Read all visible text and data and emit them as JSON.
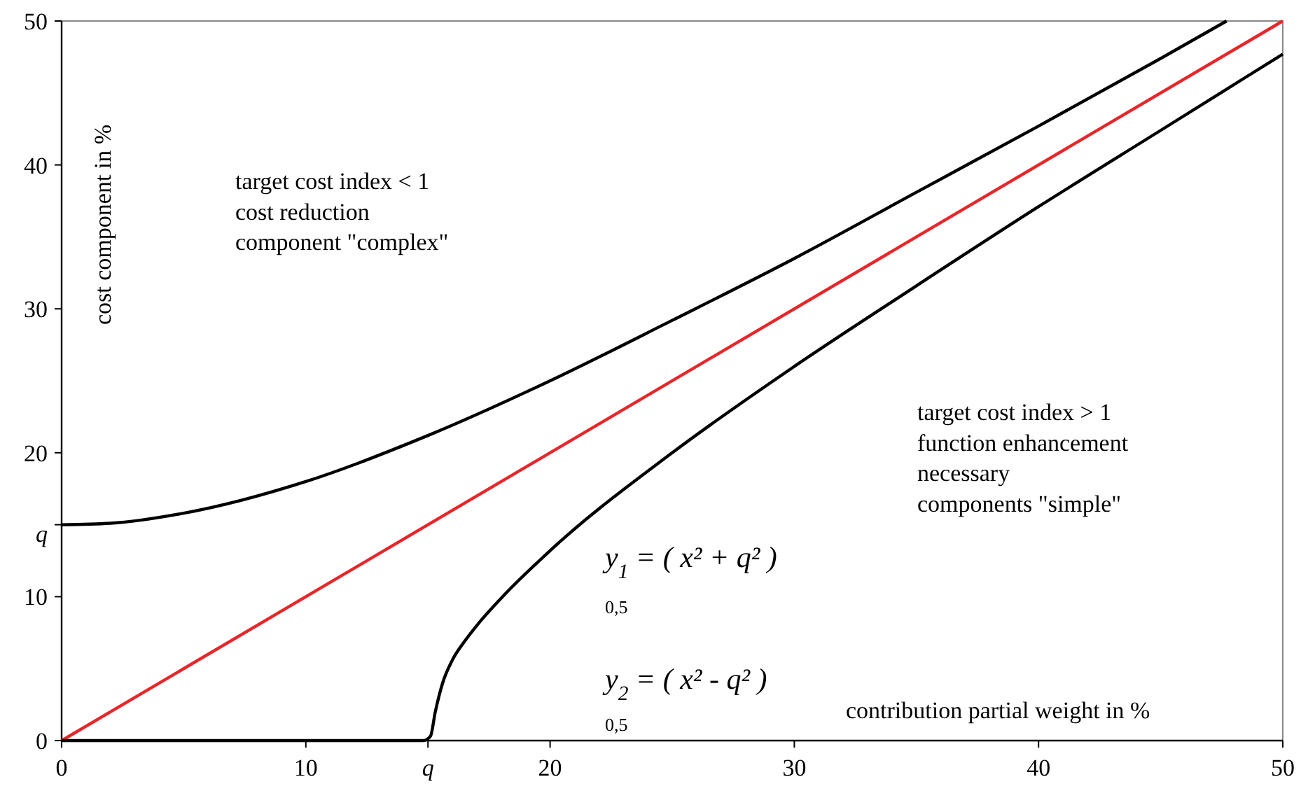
{
  "chart_data": {
    "type": "line",
    "xlabel": "contribution partial weight  in %",
    "ylabel": "cost component in %",
    "xlim": [
      0,
      50
    ],
    "ylim": [
      0,
      50
    ],
    "xticks": [
      0,
      10,
      {
        "value": 15,
        "label": "q"
      },
      20,
      30,
      40,
      50
    ],
    "yticks": [
      0,
      10,
      {
        "value": 15,
        "label": "q"
      },
      20,
      30,
      40,
      50
    ],
    "grid": false,
    "marker": "none",
    "line_style": "solid",
    "series": [
      {
        "color": "#000000",
        "x": [
          0,
          2,
          5,
          10,
          15,
          20,
          25,
          30,
          35,
          40,
          45,
          47.7
        ],
        "values": [
          15,
          15.1,
          15.8,
          18,
          21.2,
          25,
          29.2,
          33.5,
          38.1,
          42.7,
          47.4,
          50
        ]
      },
      {
        "color": "#e8262a",
        "x": [
          0,
          50
        ],
        "values": [
          0,
          50
        ]
      },
      {
        "color": "#000000",
        "x": [
          0,
          5,
          10,
          14.8,
          15.1,
          15.3,
          15.6,
          16,
          16.5,
          17,
          18,
          20,
          25,
          30,
          35,
          40,
          45,
          50
        ],
        "values": [
          0,
          0,
          0,
          0,
          0.3,
          2,
          4,
          5.6,
          6.9,
          8,
          9.9,
          13.2,
          20,
          26,
          31.6,
          37.1,
          42.4,
          47.7
        ]
      }
    ],
    "annotations": [
      "target cost index < 1\ncost reduction\ncomponent \"complex\"",
      "target cost index > 1\nfunction enhancement\nnecessary\ncomponents \"simple\"",
      "y$_{1}$ = ( x² + q² )",
      "0,5",
      "y$_{2}$ = ( x² - q² )",
      "0,5"
    ]
  }
}
